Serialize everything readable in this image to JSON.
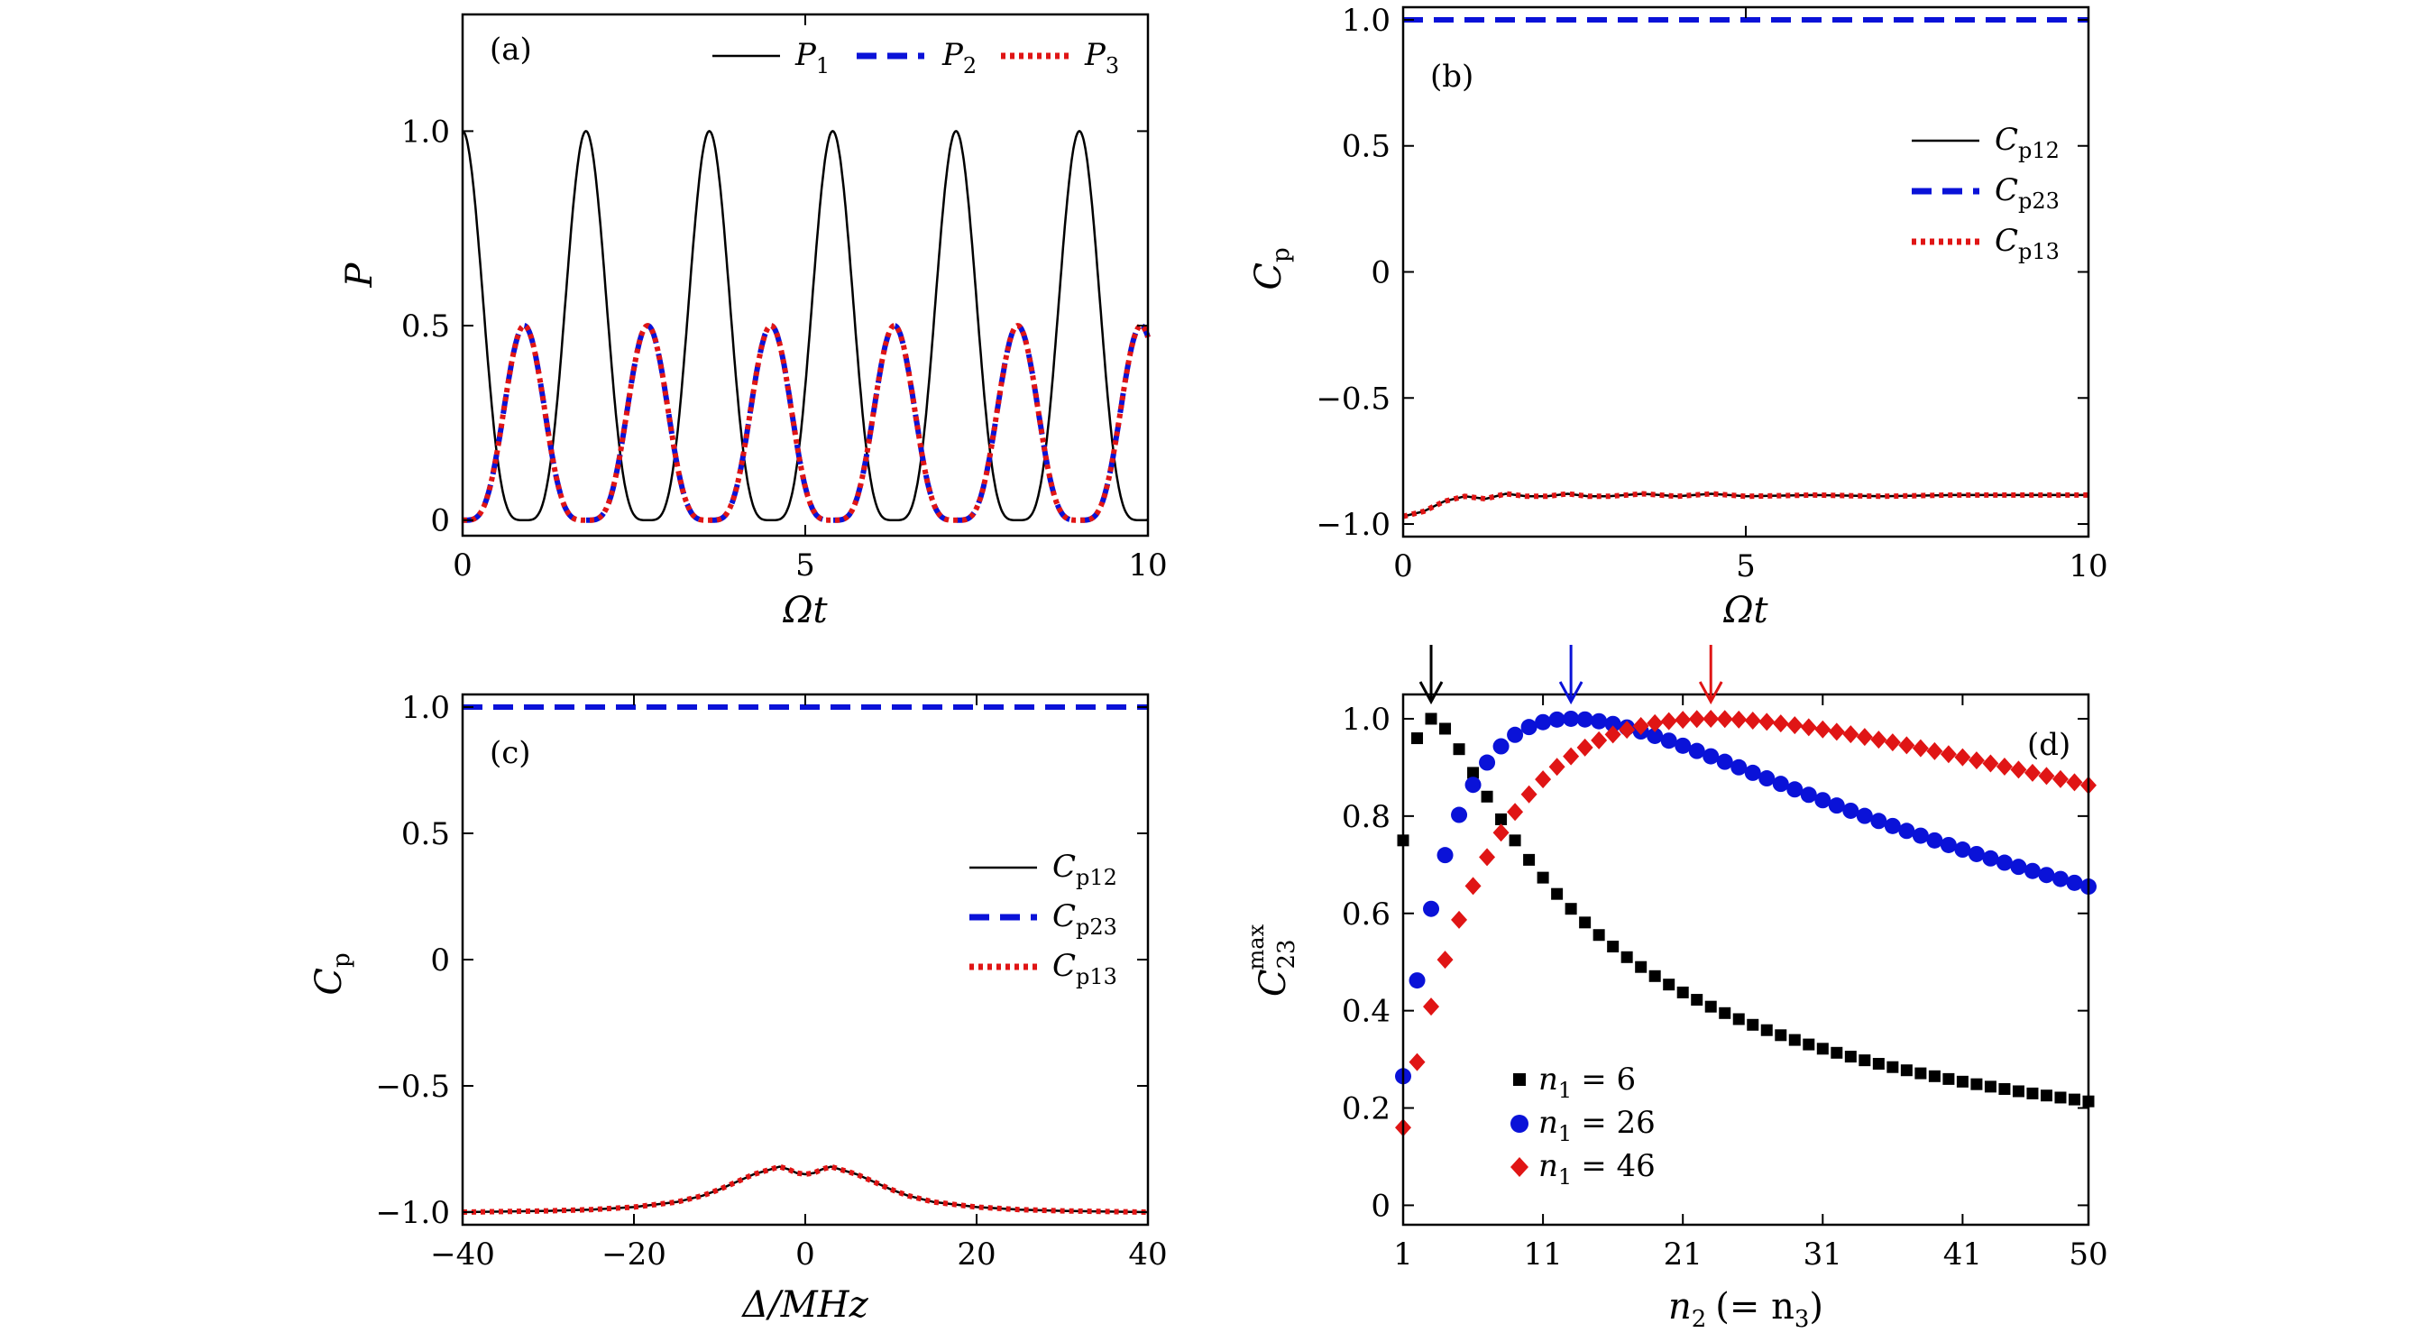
{
  "colors": {
    "black": "#000000",
    "blue": "#0a12d8",
    "red": "#e01515",
    "diamond": "#e01515"
  },
  "chart_data": [
    {
      "id": "a",
      "type": "line",
      "panel_label": "(a)",
      "xlabel": "Ωt",
      "ylabel": "P",
      "xlim": [
        0,
        10
      ],
      "ylim": [
        -0.04,
        1.3
      ],
      "xticks": [
        0,
        5,
        10
      ],
      "xtick_labels": [
        "0",
        "5",
        "10"
      ],
      "yticks": [
        0,
        0.5,
        1.0
      ],
      "ytick_labels": [
        "0",
        "0.5",
        "1.0"
      ],
      "legend_position": "top-right",
      "series": [
        {
          "name": "P1",
          "label_main": "P",
          "label_sub": "1",
          "style": "solid-black",
          "peaks_x": [
            0.0,
            1.8,
            3.6,
            5.4,
            7.2,
            9.0
          ],
          "peak_value": 1.0,
          "min_value": 0.0
        },
        {
          "name": "P2",
          "label_main": "P",
          "label_sub": "2",
          "style": "dashed-blue",
          "peaks_x": [
            0.9,
            2.7,
            4.5,
            6.3,
            8.1,
            9.9
          ],
          "peak_value": 0.5,
          "min_value": 0.0
        },
        {
          "name": "P3",
          "label_main": "P",
          "label_sub": "3",
          "style": "dotted-red",
          "peaks_x": [
            0.9,
            2.7,
            4.5,
            6.3,
            8.1,
            9.9
          ],
          "peak_value": 0.5,
          "min_value": 0.0
        }
      ]
    },
    {
      "id": "b",
      "type": "line",
      "panel_label": "(b)",
      "xlabel": "Ωt",
      "ylabel_main": "C",
      "ylabel_sub": "p",
      "xlim": [
        0,
        10
      ],
      "ylim": [
        -1.05,
        1.05
      ],
      "xticks": [
        0,
        5,
        10
      ],
      "xtick_labels": [
        "0",
        "5",
        "10"
      ],
      "yticks": [
        1.0,
        0.5,
        0,
        -0.5,
        -1.0
      ],
      "ytick_labels": [
        "1.0",
        "0.5",
        "0",
        "−0.5",
        "−1.0"
      ],
      "legend_position": "right",
      "series": [
        {
          "name": "Cp12",
          "label_main": "C",
          "label_sub": "p12",
          "style": "solid-black",
          "x": [
            0,
            0.3,
            0.6,
            0.9,
            1.2,
            1.5,
            1.8,
            2.1,
            2.4,
            2.7,
            3.0,
            3.5,
            4.0,
            4.5,
            5.0,
            6.0,
            7.0,
            8.0,
            9.0,
            10.0
          ],
          "y": [
            -0.97,
            -0.95,
            -0.91,
            -0.89,
            -0.9,
            -0.88,
            -0.89,
            -0.89,
            -0.88,
            -0.89,
            -0.89,
            -0.88,
            -0.89,
            -0.88,
            -0.89,
            -0.885,
            -0.89,
            -0.885,
            -0.885,
            -0.885
          ]
        },
        {
          "name": "Cp23",
          "label_main": "C",
          "label_sub": "p23",
          "style": "dashed-blue",
          "x": [
            0,
            10
          ],
          "y": [
            1.0,
            1.0
          ]
        },
        {
          "name": "Cp13",
          "label_main": "C",
          "label_sub": "p13",
          "style": "dotted-red",
          "x": [
            0,
            0.3,
            0.6,
            0.9,
            1.2,
            1.5,
            1.8,
            2.1,
            2.4,
            2.7,
            3.0,
            3.5,
            4.0,
            4.5,
            5.0,
            6.0,
            7.0,
            8.0,
            9.0,
            10.0
          ],
          "y": [
            -0.97,
            -0.95,
            -0.91,
            -0.89,
            -0.9,
            -0.88,
            -0.89,
            -0.89,
            -0.88,
            -0.89,
            -0.89,
            -0.88,
            -0.89,
            -0.88,
            -0.89,
            -0.885,
            -0.89,
            -0.885,
            -0.885,
            -0.885
          ]
        }
      ]
    },
    {
      "id": "c",
      "type": "line",
      "panel_label": "(c)",
      "xlabel": "Δ/MHz",
      "ylabel_main": "C",
      "ylabel_sub": "p",
      "xlim": [
        -40,
        40
      ],
      "ylim": [
        -1.05,
        1.05
      ],
      "xticks": [
        -40,
        -20,
        0,
        20,
        40
      ],
      "xtick_labels": [
        "−40",
        "−20",
        "0",
        "20",
        "40"
      ],
      "yticks": [
        1.0,
        0.5,
        0,
        -0.5,
        -1.0
      ],
      "ytick_labels": [
        "1.0",
        "0.5",
        "0",
        "−0.5",
        "−1.0"
      ],
      "legend_position": "right",
      "series": [
        {
          "name": "Cp12",
          "label_main": "C",
          "label_sub": "p12",
          "style": "solid-black",
          "x": [
            -40,
            -30,
            -25,
            -20,
            -15,
            -12,
            -10,
            -8,
            -6,
            -4,
            -3,
            -2,
            -1,
            0,
            1,
            2,
            3,
            4,
            6,
            8,
            10,
            12,
            15,
            20,
            25,
            30,
            40
          ],
          "y": [
            -1.0,
            -0.995,
            -0.99,
            -0.98,
            -0.96,
            -0.935,
            -0.91,
            -0.88,
            -0.85,
            -0.83,
            -0.82,
            -0.83,
            -0.845,
            -0.85,
            -0.845,
            -0.83,
            -0.82,
            -0.83,
            -0.85,
            -0.88,
            -0.91,
            -0.935,
            -0.96,
            -0.98,
            -0.99,
            -0.995,
            -1.0
          ]
        },
        {
          "name": "Cp23",
          "label_main": "C",
          "label_sub": "p23",
          "style": "dashed-blue",
          "x": [
            -40,
            40
          ],
          "y": [
            1.0,
            1.0
          ]
        },
        {
          "name": "Cp13",
          "label_main": "C",
          "label_sub": "p13",
          "style": "dotted-red",
          "x": [
            -40,
            -30,
            -25,
            -20,
            -15,
            -12,
            -10,
            -8,
            -6,
            -4,
            -3,
            -2,
            -1,
            0,
            1,
            2,
            3,
            4,
            6,
            8,
            10,
            12,
            15,
            20,
            25,
            30,
            40
          ],
          "y": [
            -1.0,
            -0.995,
            -0.99,
            -0.98,
            -0.96,
            -0.935,
            -0.91,
            -0.88,
            -0.85,
            -0.83,
            -0.82,
            -0.83,
            -0.845,
            -0.85,
            -0.845,
            -0.83,
            -0.82,
            -0.83,
            -0.85,
            -0.88,
            -0.91,
            -0.935,
            -0.96,
            -0.98,
            -0.99,
            -0.995,
            -1.0
          ]
        }
      ]
    },
    {
      "id": "d",
      "type": "scatter",
      "panel_label": "(d)",
      "xlabel_main": "n",
      "xlabel_sub": "2",
      "xlabel_tail": "(= n",
      "xlabel_sub2": "3",
      "xlabel_close": ")",
      "ylabel_main": "C",
      "ylabel_sub": "23",
      "ylabel_sup": "max",
      "xlim": [
        1,
        50
      ],
      "ylim": [
        -0.04,
        1.05
      ],
      "xticks": [
        1,
        11,
        21,
        31,
        41,
        50
      ],
      "xtick_labels": [
        "1",
        "11",
        "21",
        "31",
        "41",
        "50"
      ],
      "yticks": [
        0,
        0.2,
        0.4,
        0.6,
        0.8,
        1.0
      ],
      "ytick_labels": [
        "0",
        "0.2",
        "0.4",
        "0.6",
        "0.8",
        "1.0"
      ],
      "legend_position": "bottom-left",
      "series": [
        {
          "name": "n1 = 6",
          "label_main": "n",
          "label_sub": "1",
          "label_tail": "= 6",
          "marker": "square",
          "color_key": "black",
          "n1": 6,
          "peak_x": 3
        },
        {
          "name": "n1 = 26",
          "label_main": "n",
          "label_sub": "1",
          "label_tail": "= 26",
          "marker": "circle",
          "color_key": "blue",
          "n1": 26,
          "peak_x": 13
        },
        {
          "name": "n1 = 46",
          "label_main": "n",
          "label_sub": "1",
          "label_tail": "= 46",
          "marker": "diamond",
          "color_key": "red",
          "n1": 46,
          "peak_x": 23
        }
      ],
      "arrows_x": [
        3,
        13,
        23
      ]
    }
  ]
}
